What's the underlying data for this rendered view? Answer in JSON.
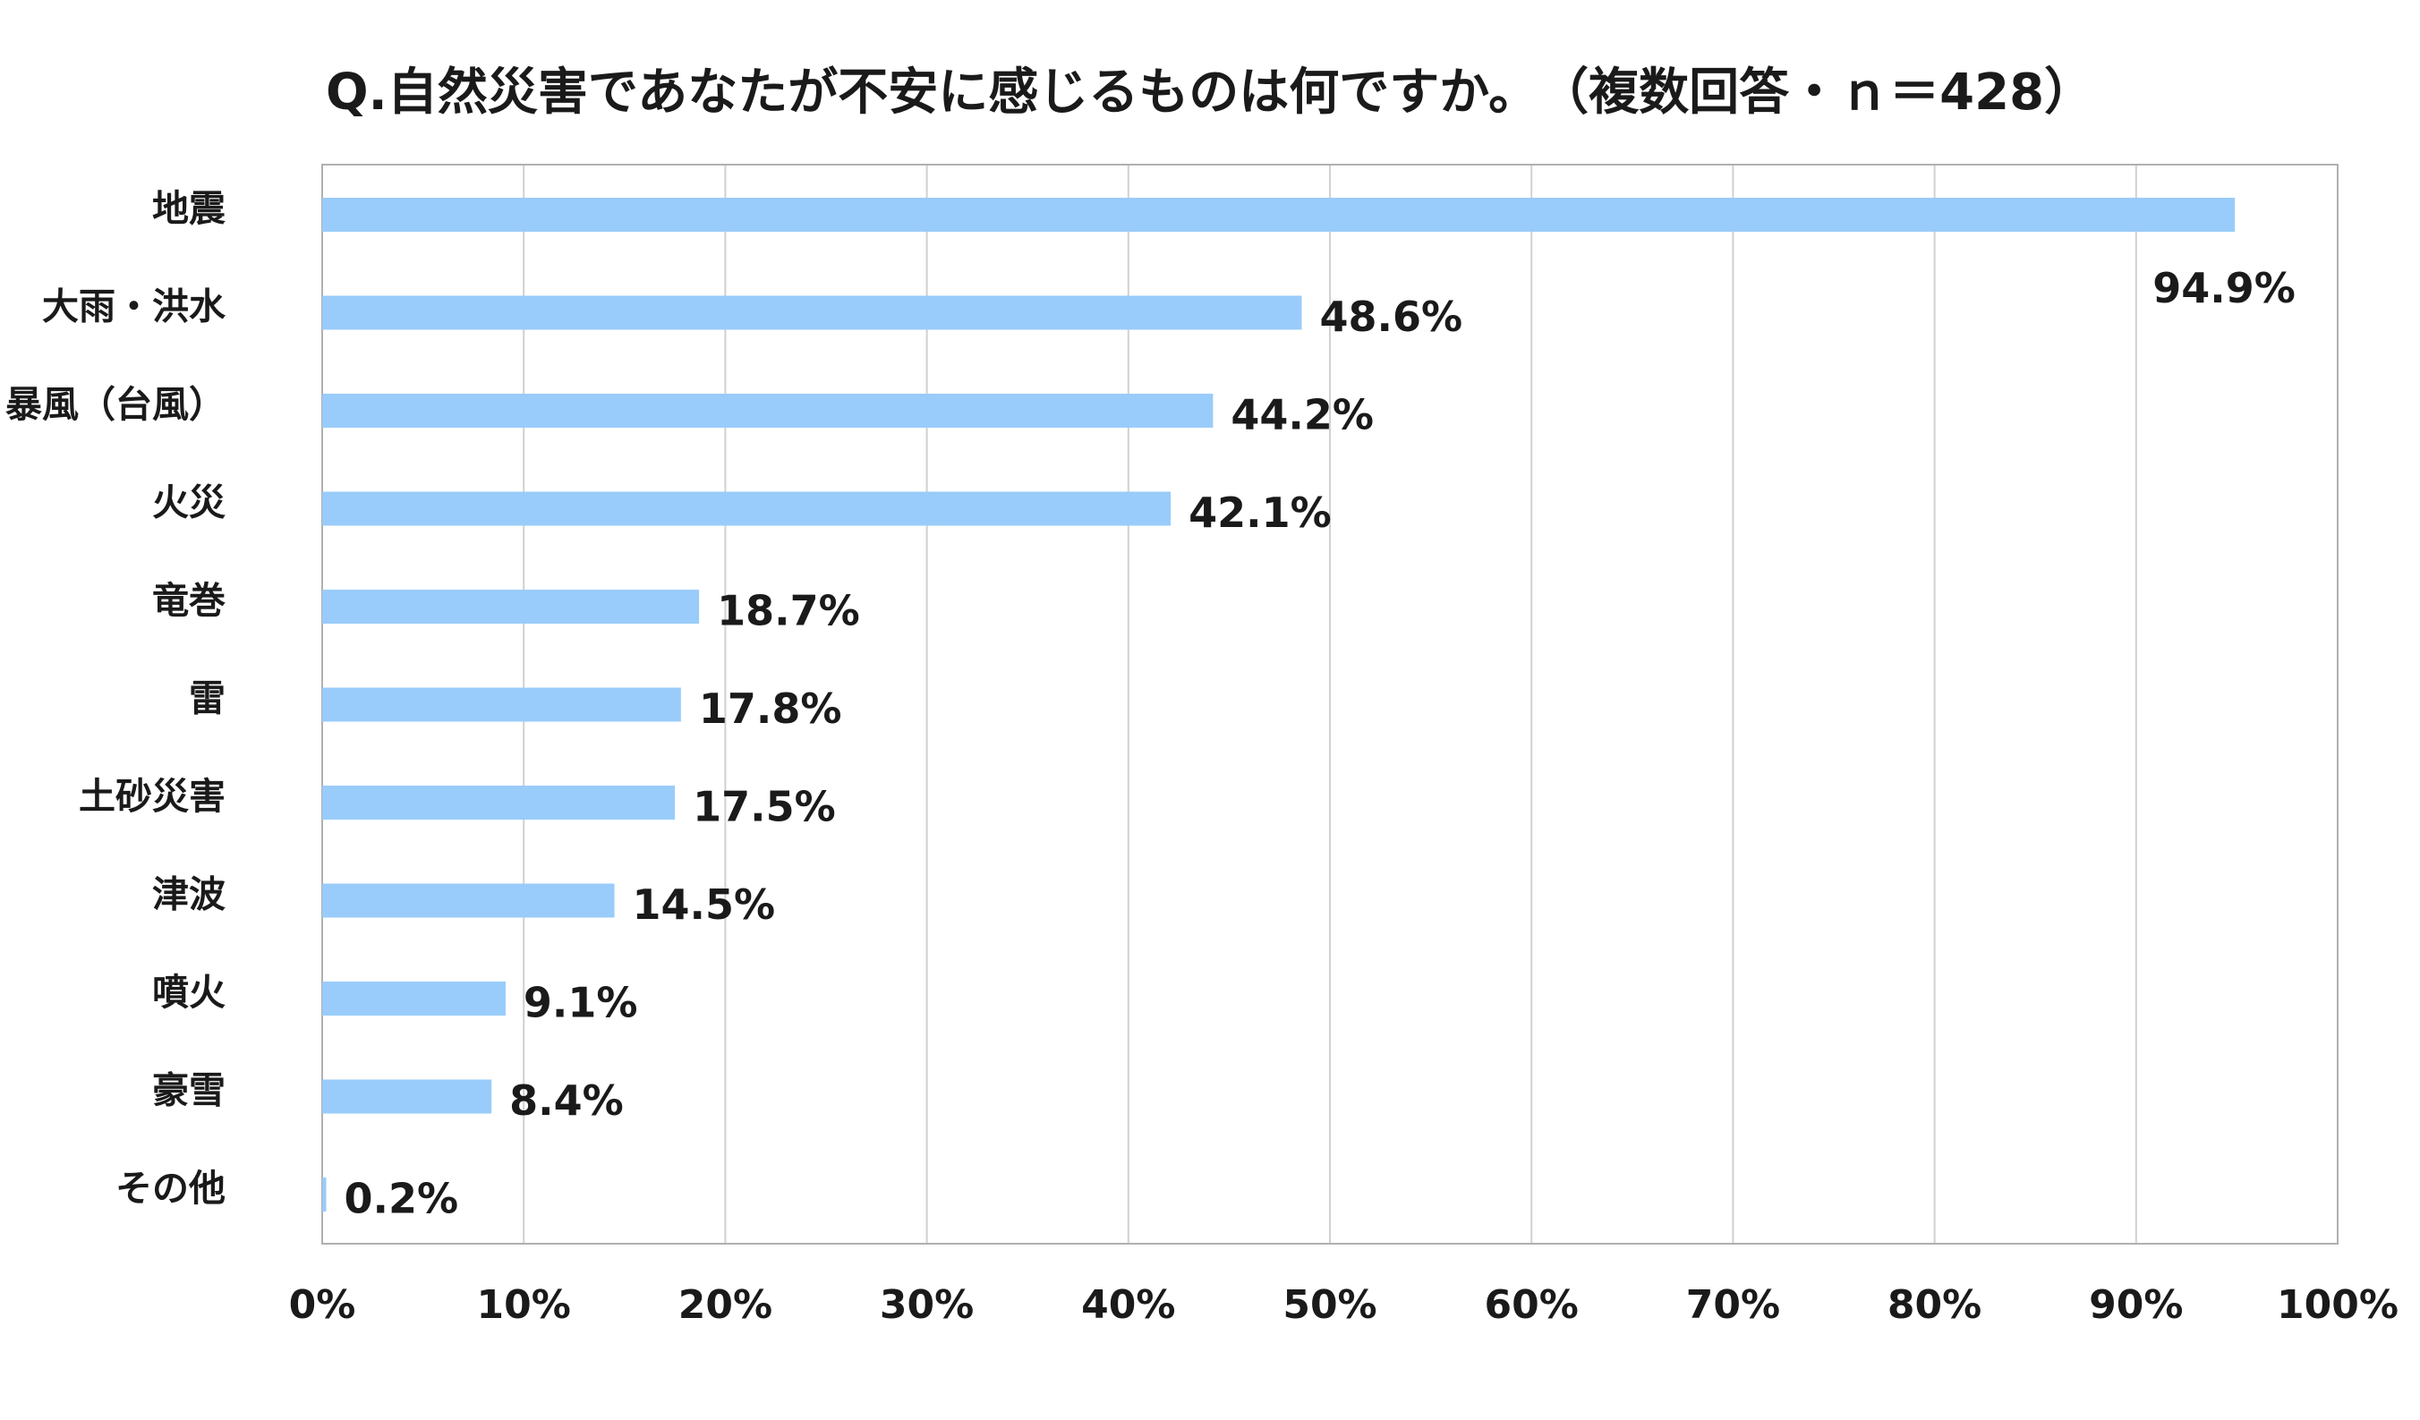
{
  "chart_data": {
    "type": "bar",
    "orientation": "horizontal",
    "title": "Q.自然災害であなたが不安に感じるものは何ですか。　（複数回答・ｎ＝428）",
    "categories": [
      "地震",
      "大雨・洪水",
      "暴風（台風）",
      "火災",
      "竜巻",
      "雷",
      "土砂災害",
      "津波",
      "噴火",
      "豪雪",
      "その他"
    ],
    "values": [
      94.9,
      48.6,
      44.2,
      42.1,
      18.7,
      17.8,
      17.5,
      14.5,
      9.1,
      8.4,
      0.2
    ],
    "data_labels": [
      "94.9%",
      "48.6%",
      "44.2%",
      "42.1%",
      "18.7%",
      "17.8%",
      "17.5%",
      "14.5%",
      "9.1%",
      "8.4%",
      "0.2%"
    ],
    "xlim": [
      0,
      100
    ],
    "x_ticks": [
      "0%",
      "10%",
      "20%",
      "30%",
      "40%",
      "50%",
      "60%",
      "70%",
      "80%",
      "90%",
      "100%"
    ],
    "grid": true,
    "legend": "none",
    "bar_color": "#99ccfa",
    "grid_color": "#d0d0d0",
    "border_color": "#b0b0b0"
  }
}
